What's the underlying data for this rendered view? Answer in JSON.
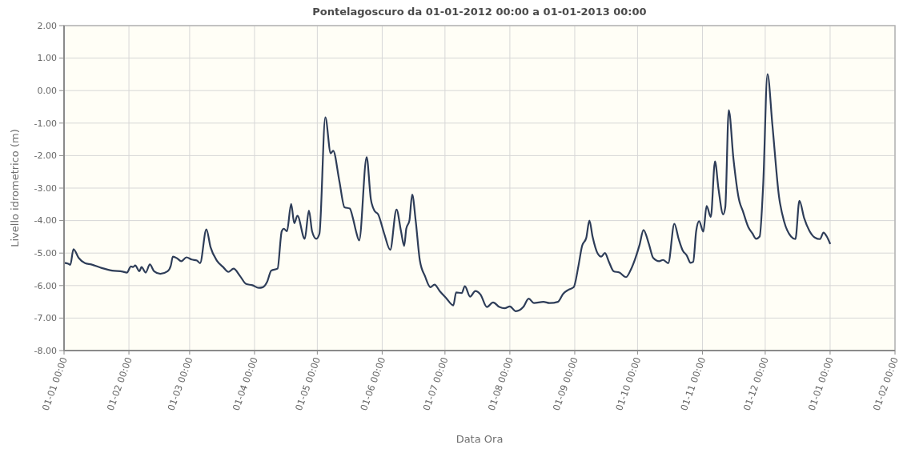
{
  "chart_data": {
    "type": "line",
    "title": "Pontelagoscuro da 01-01-2012 00:00 a 01-01-2013 00:00",
    "xlabel": "Data Ora",
    "ylabel": "Livello idrometrico (m)",
    "x": [
      "2012-01-01",
      "2012-01-03",
      "2012-01-04",
      "2012-01-05T12:00",
      "2012-01-08",
      "2012-01-11",
      "2012-01-14",
      "2012-01-19",
      "2012-01-24",
      "2012-01-29",
      "2012-01-31",
      "2012-02-02",
      "2012-02-03",
      "2012-02-04",
      "2012-02-06",
      "2012-02-07",
      "2012-02-09",
      "2012-02-11",
      "2012-02-13",
      "2012-02-16",
      "2012-02-19T12:00",
      "2012-02-21",
      "2012-02-22",
      "2012-02-24",
      "2012-02-26",
      "2012-02-28T12:00",
      "2012-03-02",
      "2012-03-04T12:00",
      "2012-03-06",
      "2012-03-09",
      "2012-03-11",
      "2012-03-14",
      "2012-03-17",
      "2012-03-19T12:00",
      "2012-03-22",
      "2012-03-25",
      "2012-03-28",
      "2012-03-31",
      "2012-04-03",
      "2012-04-05",
      "2012-04-07",
      "2012-04-09",
      "2012-04-12",
      "2012-04-14",
      "2012-04-15",
      "2012-04-16T12:00",
      "2012-04-18T12:00",
      "2012-04-20",
      "2012-04-21T12:00",
      "2012-04-25",
      "2012-04-27",
      "2012-04-28T12:00",
      "2012-04-30T12:00",
      "2012-05-02",
      "2012-05-04T20:00",
      "2012-05-07T10:00",
      "2012-05-08T14:00",
      "2012-05-11T12:00",
      "2012-05-14",
      "2012-05-16T12:00",
      "2012-05-18",
      "2012-05-19T12:00",
      "2012-05-21",
      "2012-05-24T14:00",
      "2012-05-26T14:00",
      "2012-05-28T10:00",
      "2012-05-30",
      "2012-06-02",
      "2012-06-04T20:00",
      "2012-06-07T20:00",
      "2012-06-10",
      "2012-06-11T12:00",
      "2012-06-12T12:00",
      "2012-06-14",
      "2012-06-15T08:00",
      "2012-06-17",
      "2012-06-19",
      "2012-06-21T12:00",
      "2012-06-24",
      "2012-06-26",
      "2012-06-28T12:00",
      "2012-07-01T12:00",
      "2012-07-05",
      "2012-07-06T08:00",
      "2012-07-09",
      "2012-07-10T12:00",
      "2012-07-13",
      "2012-07-15T12:00",
      "2012-07-18",
      "2012-07-21",
      "2012-07-24",
      "2012-07-27",
      "2012-07-29T12:00",
      "2012-08-01",
      "2012-08-03T20:00",
      "2012-08-07T10:00",
      "2012-08-10",
      "2012-08-12T12:00",
      "2012-08-17",
      "2012-08-20",
      "2012-08-24",
      "2012-08-26T12:00",
      "2012-08-29",
      "2012-08-31T12:00",
      "2012-09-02T16:00",
      "2012-09-04T12:00",
      "2012-09-06T12:00",
      "2012-09-08",
      "2012-09-09T12:00",
      "2012-09-12",
      "2012-09-13T16:00",
      "2012-09-15T10:00",
      "2012-09-17T08:00",
      "2012-09-19T14:00",
      "2012-09-22T08:00",
      "2012-09-25T12:00",
      "2012-09-28",
      "2012-09-30",
      "2012-10-02",
      "2012-10-03T20:00",
      "2012-10-06T08:00",
      "2012-10-08T12:00",
      "2012-10-11T08:00",
      "2012-10-13T04:00",
      "2012-10-15T16:00",
      "2012-10-18T14:00",
      "2012-10-20T16:00",
      "2012-10-22T14:00",
      "2012-10-24T12:00",
      "2012-10-26T08:00",
      "2012-10-27T14:00",
      "2012-10-29",
      "2012-10-30T10:00",
      "2012-11-01T10:00",
      "2012-11-03",
      "2012-11-05",
      "2012-11-07",
      "2012-11-08T16:00",
      "2012-11-10T22:00",
      "2012-11-11T22:00",
      "2012-11-13T14:00",
      "2012-11-15T20:00",
      "2012-11-18T10:00",
      "2012-11-20T08:00",
      "2012-11-22T22:00",
      "2012-11-24T20:00",
      "2012-11-26T16:00",
      "2012-11-28T08:00",
      "2012-11-30",
      "2012-12-02T02:00",
      "2012-12-04T10:00",
      "2012-12-07T14:00",
      "2012-12-10T02:00",
      "2012-12-13T08:00",
      "2012-12-15T10:00",
      "2012-12-17T08:00",
      "2012-12-19T14:00",
      "2012-12-22T02:00",
      "2012-12-24T16:00",
      "2012-12-27T04:00",
      "2012-12-28T20:00",
      "2012-12-30T10:00",
      "2012-12-31T22:00"
    ],
    "series": [
      {
        "color": "#2e3d58",
        "values": [
          -5.3,
          -5.33,
          -5.36,
          -4.88,
          -5.15,
          -5.31,
          -5.35,
          -5.46,
          -5.54,
          -5.57,
          -5.6,
          -5.41,
          -5.43,
          -5.38,
          -5.56,
          -5.43,
          -5.6,
          -5.35,
          -5.56,
          -5.64,
          -5.56,
          -5.39,
          -5.11,
          -5.16,
          -5.25,
          -5.13,
          -5.2,
          -5.23,
          -5.31,
          -4.27,
          -4.82,
          -5.23,
          -5.43,
          -5.58,
          -5.48,
          -5.7,
          -5.95,
          -5.99,
          -6.07,
          -6.05,
          -5.89,
          -5.54,
          -5.48,
          -4.33,
          -4.25,
          -4.33,
          -3.49,
          -4.08,
          -3.85,
          -4.56,
          -3.69,
          -4.33,
          -4.56,
          -4.41,
          -0.82,
          -1.93,
          -1.85,
          -2.77,
          -3.59,
          -3.63,
          -3.92,
          -4.33,
          -4.61,
          -2.05,
          -3.34,
          -3.71,
          -3.8,
          -4.41,
          -4.9,
          -3.66,
          -4.33,
          -4.78,
          -4.25,
          -4.0,
          -3.2,
          -4.0,
          -5.23,
          -5.72,
          -6.05,
          -5.97,
          -6.17,
          -6.38,
          -6.61,
          -6.21,
          -6.23,
          -6.02,
          -6.34,
          -6.17,
          -6.28,
          -6.66,
          -6.52,
          -6.66,
          -6.7,
          -6.64,
          -6.79,
          -6.66,
          -6.4,
          -6.54,
          -6.5,
          -6.54,
          -6.5,
          -6.25,
          -6.13,
          -6.05,
          -5.43,
          -4.78,
          -4.53,
          -4.0,
          -4.49,
          -5.02,
          -5.11,
          -5.0,
          -5.27,
          -5.56,
          -5.6,
          -5.74,
          -5.48,
          -5.15,
          -4.74,
          -4.29,
          -4.7,
          -5.15,
          -5.25,
          -5.21,
          -5.31,
          -4.1,
          -4.57,
          -4.92,
          -5.07,
          -5.3,
          -5.27,
          -4.33,
          -4.02,
          -4.34,
          -3.55,
          -3.89,
          -2.18,
          -3.02,
          -3.81,
          -3.59,
          -0.6,
          -2.11,
          -3.34,
          -3.71,
          -4.2,
          -4.39,
          -4.56,
          -4.49,
          -2.93,
          0.51,
          -1.05,
          -3.26,
          -4.04,
          -4.49,
          -4.57,
          -3.39,
          -3.92,
          -4.31,
          -4.52,
          -4.57,
          -4.37,
          -4.49,
          -4.7
        ]
      }
    ],
    "xlim": [
      "2012-01-01",
      "2013-02-01"
    ],
    "xticks": [
      {
        "value": "2012-01-01",
        "label": "01-01 00:00"
      },
      {
        "value": "2012-02-01",
        "label": "01-02 00:00"
      },
      {
        "value": "2012-03-01",
        "label": "01-03 00:00"
      },
      {
        "value": "2012-04-01",
        "label": "01-04 00:00"
      },
      {
        "value": "2012-05-01",
        "label": "01-05 00:00"
      },
      {
        "value": "2012-06-01",
        "label": "01-06 00:00"
      },
      {
        "value": "2012-07-01",
        "label": "01-07 00:00"
      },
      {
        "value": "2012-08-01",
        "label": "01-08 00:00"
      },
      {
        "value": "2012-09-01",
        "label": "01-09 00:00"
      },
      {
        "value": "2012-10-01",
        "label": "01-10 00:00"
      },
      {
        "value": "2012-11-01",
        "label": "01-11 00:00"
      },
      {
        "value": "2012-12-01",
        "label": "01-12 00:00"
      },
      {
        "value": "2013-01-01",
        "label": "01-01 00:00"
      },
      {
        "value": "2013-02-01",
        "label": "01-02 00:00"
      }
    ],
    "ylim": [
      -8,
      2
    ],
    "yticks": [
      {
        "value": 2,
        "label": "2.00"
      },
      {
        "value": 1,
        "label": "1.00"
      },
      {
        "value": 0,
        "label": "0.00"
      },
      {
        "value": -1,
        "label": "-1.00"
      },
      {
        "value": -2,
        "label": "-2.00"
      },
      {
        "value": -3,
        "label": "-3.00"
      },
      {
        "value": -4,
        "label": "-4.00"
      },
      {
        "value": -5,
        "label": "-5.00"
      },
      {
        "value": -6,
        "label": "-6.00"
      },
      {
        "value": -7,
        "label": "-7.00"
      },
      {
        "value": -8,
        "label": "-8.00"
      }
    ],
    "grid": true
  }
}
